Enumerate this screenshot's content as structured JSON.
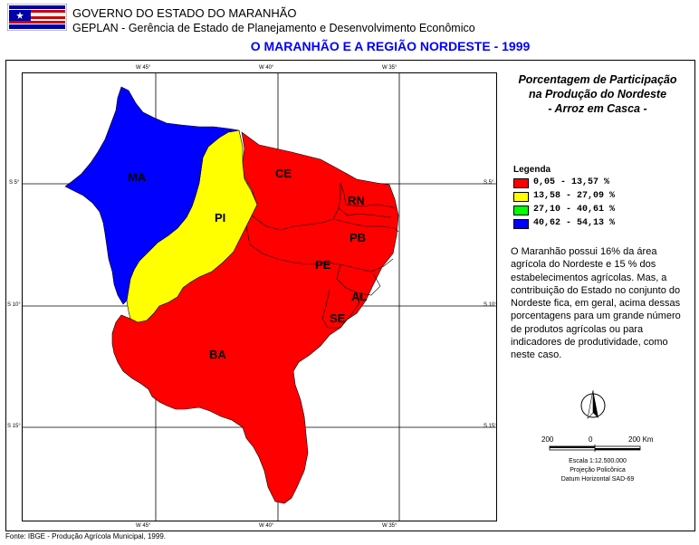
{
  "header": {
    "line1": "GOVERNO DO ESTADO DO MARANHÃO",
    "line2": "GEPLAN - Gerência de Estado de Planejamento e Desenvolvimento Econômico",
    "title": "O MARANHÃO E A REGIÃO NORDESTE - 1999"
  },
  "grid": {
    "top": [
      "W 45°",
      "W 40°",
      "W 35°"
    ],
    "bottom": [
      "W 45°",
      "W 40°",
      "W 35°"
    ],
    "left": [
      "S 5°",
      "S 10°",
      "S 15°"
    ],
    "right": [
      "S 5°",
      "S 10°",
      "S 15°"
    ]
  },
  "states": [
    {
      "code": "MA",
      "class": "40,62 - 54,13 %"
    },
    {
      "code": "PI",
      "class": "13,58 - 27,09 %"
    },
    {
      "code": "CE",
      "class": "0,05 - 13,57 %"
    },
    {
      "code": "RN",
      "class": "0,05 - 13,57 %"
    },
    {
      "code": "PB",
      "class": "0,05 - 13,57 %"
    },
    {
      "code": "PE",
      "class": "0,05 - 13,57 %"
    },
    {
      "code": "AL",
      "class": "0,05 - 13,57 %"
    },
    {
      "code": "SE",
      "class": "0,05 - 13,57 %"
    },
    {
      "code": "BA",
      "class": "0,05 - 13,57 %"
    }
  ],
  "panel": {
    "title_line1": "Porcentagem de Participação",
    "title_line2": "na Produção do Nordeste",
    "title_line3": "- Arroz em Casca -"
  },
  "legend": {
    "title": "Legenda",
    "items": [
      {
        "label": "0,05 - 13,57 %",
        "color": "#ff0000"
      },
      {
        "label": "13,58 - 27,09 %",
        "color": "#ffff00"
      },
      {
        "label": "27,10 - 40,61 %",
        "color": "#00ff00"
      },
      {
        "label": "40,62 - 54,13 %",
        "color": "#0000ff"
      }
    ]
  },
  "info_text": "O Maranhão possui 16% da área agrícola do Nordeste e 15 % dos estabelecimentos agrícolas. Mas, a contribuição do Estado no conjunto do Nordeste fica, em geral, acima dessas porcentagens para um grande número de produtos agrícolas ou para indicadores de produtividade, como neste caso.",
  "scale": {
    "left": "200",
    "middle": "0",
    "right": "200 Km",
    "line1": "Escala 1:12.500.000",
    "line2": "Projeção Policônica",
    "line3": "Datum Horizontal SAD-69"
  },
  "source": "Fonte: IBGE - Produção Agrícola Municipal, 1999."
}
